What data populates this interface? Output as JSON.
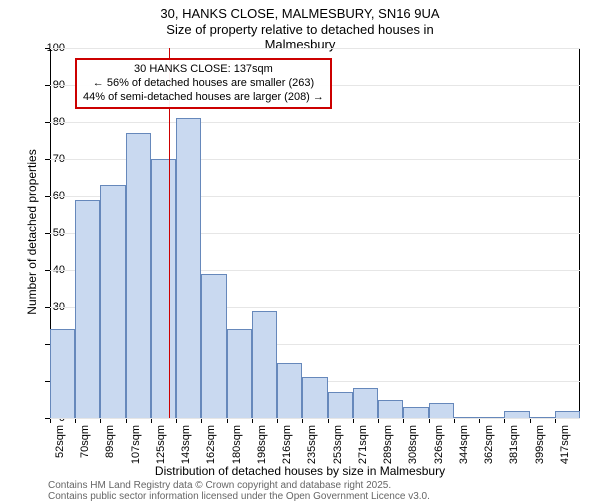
{
  "chart": {
    "type": "histogram",
    "title": "30, HANKS CLOSE, MALMESBURY, SN16 9UA",
    "subtitle": "Size of property relative to detached houses in Malmesbury",
    "y_axis_label": "Number of detached properties",
    "x_axis_label": "Distribution of detached houses by size in Malmesbury",
    "background_color": "#ffffff",
    "grid_color": "#e6e6e6",
    "axis_color": "#000000",
    "bar_fill": "#c9d9f0",
    "bar_border": "#6688bb",
    "marker_color": "#cc0000",
    "annotation_border": "#cc0000",
    "title_fontsize": 13,
    "axis_label_fontsize": 12,
    "tick_fontsize": 11,
    "footer_fontsize": 10,
    "ylim": [
      0,
      100
    ],
    "ytick_step": 10,
    "y_ticks": [
      0,
      10,
      20,
      30,
      40,
      50,
      60,
      70,
      80,
      90,
      100
    ],
    "x_categories": [
      "52sqm",
      "70sqm",
      "89sqm",
      "107sqm",
      "125sqm",
      "143sqm",
      "162sqm",
      "180sqm",
      "198sqm",
      "216sqm",
      "235sqm",
      "253sqm",
      "271sqm",
      "289sqm",
      "308sqm",
      "326sqm",
      "344sqm",
      "362sqm",
      "381sqm",
      "399sqm",
      "417sqm"
    ],
    "values": [
      24,
      59,
      63,
      77,
      70,
      81,
      39,
      24,
      29,
      15,
      11,
      7,
      8,
      5,
      3,
      4,
      0,
      0,
      2,
      0,
      2
    ],
    "marker_value": 137,
    "marker_position": 4.72,
    "annotation": {
      "line1": "30 HANKS CLOSE: 137sqm",
      "line2": "← 56% of detached houses are smaller (263)",
      "line3": "44% of semi-detached houses are larger (208) →"
    },
    "footer1": "Contains HM Land Registry data © Crown copyright and database right 2025.",
    "footer2": "Contains public sector information licensed under the Open Government Licence v3.0."
  }
}
